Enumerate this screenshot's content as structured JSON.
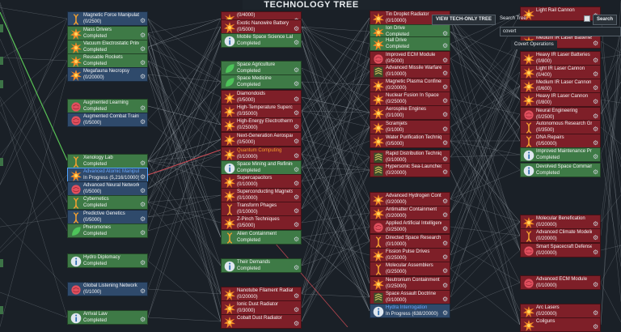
{
  "header": {
    "title": "TECHNOLOGY TREE"
  },
  "controls": {
    "view_only_btn": "VIEW TECH-ONLY TREE",
    "search_label": "Search Tree",
    "search_btn": "Search",
    "search_value": "covert",
    "result_label": "Covert Operations"
  },
  "colors": {
    "completed": "#3e7a46",
    "locked": "#7e1f28",
    "progress": "#2f4a6b",
    "line": "#9aa3ab",
    "highlight_green": "#5fd35a",
    "highlight_red": "#e0505a"
  },
  "col1": [
    {
      "name": "Magnetic Force Manipulation",
      "status": "(0/2500)",
      "c": "blue",
      "icon": "dna-icon"
    },
    {
      "name": "Mass Drivers",
      "status": "Completed",
      "c": "green",
      "icon": "explosion-icon"
    },
    {
      "name": "Vacuum Electrostatic Principles",
      "status": "Completed",
      "c": "green",
      "icon": "explosion-icon"
    },
    {
      "name": "Reusable Rockets",
      "status": "Completed",
      "c": "green",
      "icon": "explosion-icon"
    },
    {
      "name": "Megafauna Necropsy",
      "status": "(0/20000)",
      "c": "blue",
      "icon": "explosion-icon"
    },
    {
      "name": "Augmented Learning",
      "status": "Completed",
      "c": "green",
      "icon": "brain-icon"
    },
    {
      "name": "Augmented Combat Training",
      "status": "(0/5000)",
      "c": "blue",
      "icon": "brain-icon"
    },
    {
      "name": "Xenology Lab",
      "status": "Completed",
      "c": "green",
      "icon": "dna-icon"
    },
    {
      "name": "Advanced Atomic Manipulation",
      "status": "In Progress (5,216/10000)",
      "c": "blue",
      "icon": "explosion-icon",
      "sel": true
    },
    {
      "name": "Advanced Neural Networks",
      "status": "(0/5000)",
      "c": "blue",
      "icon": "brain-icon"
    },
    {
      "name": "Cybernetics",
      "status": "Completed",
      "c": "green",
      "icon": "dna-icon"
    },
    {
      "name": "Predictive Genetics",
      "status": "(0/5000)",
      "c": "blue",
      "icon": "dna-icon"
    },
    {
      "name": "Pheromones",
      "status": "Completed",
      "c": "green",
      "icon": "leaf-icon"
    },
    {
      "name": "Hydro Diplomacy",
      "status": "Completed",
      "c": "green",
      "icon": "info-icon"
    },
    {
      "name": "Global Listening Network",
      "status": "(0/1000)",
      "c": "blue",
      "icon": "brain-icon"
    },
    {
      "name": "Arrival Law",
      "status": "Completed",
      "c": "green",
      "icon": "info-icon"
    }
  ],
  "col2": [
    {
      "name": "(0/4000)",
      "status": "",
      "c": "red",
      "icon": "explosion-icon"
    },
    {
      "name": "Exotic Nanowire Battery",
      "status": "(0/5000)",
      "c": "red",
      "icon": "explosion-icon"
    },
    {
      "name": "Mobile Space Science Lab",
      "status": "Completed",
      "c": "green",
      "icon": "info-icon"
    },
    {
      "name": "Space Agriculture",
      "status": "Completed",
      "c": "green",
      "icon": "leaf-icon"
    },
    {
      "name": "Space Medicine",
      "status": "Completed",
      "c": "green",
      "icon": "leaf-icon"
    },
    {
      "name": "Diamondoids",
      "status": "(0/5000)",
      "c": "red",
      "icon": "explosion-icon"
    },
    {
      "name": "High-Temperature Superconductors",
      "status": "(0/35000)",
      "c": "red",
      "icon": "explosion-icon"
    },
    {
      "name": "High-Energy Electrothermal Propulsion",
      "status": "(0/25000)",
      "c": "red",
      "icon": "explosion-icon"
    },
    {
      "name": "Next-Generation Aerospace",
      "status": "(0/5000)",
      "c": "red",
      "icon": "explosion-icon"
    },
    {
      "name": "Quantum Computing",
      "status": "(0/10000)",
      "c": "red",
      "icon": "explosion-icon",
      "orange": true
    },
    {
      "name": "Space Mining and Refining",
      "status": "Completed",
      "c": "green",
      "icon": "info-icon"
    },
    {
      "name": "Supercapacitors",
      "status": "(0/10000)",
      "c": "red",
      "icon": "explosion-icon"
    },
    {
      "name": "Superconducting Magnets",
      "status": "(0/10000)",
      "c": "red",
      "icon": "explosion-icon"
    },
    {
      "name": "Transform Phages",
      "status": "(0/10000)",
      "c": "red",
      "icon": "dna-icon"
    },
    {
      "name": "Z-Pinch Techniques",
      "status": "(0/5000)",
      "c": "red",
      "icon": "explosion-icon"
    },
    {
      "name": "Alien Containment",
      "status": "Completed",
      "c": "green",
      "icon": "dna-icon"
    },
    {
      "name": "Their Demands",
      "status": "Completed",
      "c": "green",
      "icon": "info-icon"
    },
    {
      "name": "Nanotube Filament Radiator",
      "status": "(0/20000)",
      "c": "red",
      "icon": "explosion-icon"
    },
    {
      "name": "Ionic Dust Radiator",
      "status": "(0/3000)",
      "c": "red",
      "icon": "explosion-icon"
    },
    {
      "name": "Cobalt Dust Radiator",
      "status": "",
      "c": "red",
      "icon": "explosion-icon"
    }
  ],
  "col3": [
    {
      "name": "Tin Droplet Radiator",
      "status": "(0/10000)",
      "c": "red",
      "icon": "explosion-icon"
    },
    {
      "name": "Ion Drive",
      "status": "Completed",
      "c": "green",
      "icon": "explosion-icon"
    },
    {
      "name": "Hall Drive",
      "status": "Completed",
      "c": "green",
      "icon": "explosion-icon"
    },
    {
      "name": "Improved ECM Module",
      "status": "(0/5000)",
      "c": "red",
      "icon": "brain-icon"
    },
    {
      "name": "Advanced Missile Warfare Doctrine",
      "status": "(0/10000)",
      "c": "red",
      "icon": "rank-icon"
    },
    {
      "name": "Magnetic Plasma Confinement",
      "status": "(0/20000)",
      "c": "red",
      "icon": "explosion-icon"
    },
    {
      "name": "Nuclear Fusion In Space",
      "status": "(0/25000)",
      "c": "red",
      "icon": "explosion-icon"
    },
    {
      "name": "Aerospike Engines",
      "status": "(0/1000)",
      "c": "red",
      "icon": "explosion-icon"
    },
    {
      "name": "Scramjets",
      "status": "(0/1000)",
      "c": "red",
      "icon": "explosion-icon"
    },
    {
      "name": "Water Purification Techniques",
      "status": "(0/5000)",
      "c": "red",
      "icon": "explosion-icon"
    },
    {
      "name": "Rapid Distribution Techniques",
      "status": "(0/10000)",
      "c": "red",
      "icon": "rank-icon"
    },
    {
      "name": "Hypersonic Sea-Launched Cruise Missiles",
      "status": "(0/20000)",
      "c": "red",
      "icon": "rank-icon"
    },
    {
      "name": "Advanced Hydrogen Containment",
      "status": "(0/20000)",
      "c": "red",
      "icon": "explosion-icon"
    },
    {
      "name": "Antimatter Containment",
      "status": "(0/20000)",
      "c": "red",
      "icon": "explosion-icon"
    },
    {
      "name": "Applied Artificial Intelligence",
      "status": "(0/25000)",
      "c": "red",
      "icon": "brain-icon"
    },
    {
      "name": "Directed Space Research",
      "status": "(0/10000)",
      "c": "red",
      "icon": "dna-icon"
    },
    {
      "name": "Fission Pulse Drives",
      "status": "(0/25000)",
      "c": "red",
      "icon": "explosion-icon"
    },
    {
      "name": "Molecular Assemblers",
      "status": "(0/25000)",
      "c": "red",
      "icon": "dna-icon"
    },
    {
      "name": "Neutronium Containment",
      "status": "(0/25000)",
      "c": "red",
      "icon": "explosion-icon"
    },
    {
      "name": "Space Assault Doctrine",
      "status": "(0/10000)",
      "c": "red",
      "icon": "rank-icon"
    },
    {
      "name": "Hydra Interrogation",
      "status": "In Progress (638/20000)",
      "c": "blue",
      "icon": "info-icon",
      "blue": true
    }
  ],
  "col4": [
    {
      "name": "Light Rail Cannon",
      "status": "",
      "c": "red",
      "icon": "explosion-icon"
    },
    {
      "name": "Medium IR Laser Batteries",
      "status": "",
      "c": "red",
      "icon": "explosion-icon"
    },
    {
      "name": "Heavy IR Laser Batteries",
      "status": "(0/800)",
      "c": "red",
      "icon": "explosion-icon"
    },
    {
      "name": "Light IR Laser Cannon",
      "status": "(0/400)",
      "c": "red",
      "icon": "explosion-icon"
    },
    {
      "name": "Medium IR Laser Cannon",
      "status": "(0/600)",
      "c": "red",
      "icon": "explosion-icon"
    },
    {
      "name": "Heavy IR Laser Cannon",
      "status": "(0/800)",
      "c": "red",
      "icon": "explosion-icon"
    },
    {
      "name": "Neural Engineering",
      "status": "(0/2500)",
      "c": "red",
      "icon": "brain-icon"
    },
    {
      "name": "Autonomous Research Groups",
      "status": "(0/3500)",
      "c": "red",
      "icon": "dna-icon"
    },
    {
      "name": "DNA Repairs",
      "status": "(0/50000)",
      "c": "red",
      "icon": "dna-icon"
    },
    {
      "name": "Improved Maintenance Procedures",
      "status": "Completed",
      "c": "green",
      "icon": "info-icon"
    },
    {
      "name": "Devolved Space Command",
      "status": "Completed",
      "c": "green",
      "icon": "info-icon"
    },
    {
      "name": "Molecular Benefication",
      "status": "(0/20000)",
      "c": "red",
      "icon": "explosion-icon"
    },
    {
      "name": "Advanced Climate Modeling",
      "status": "(0/20000)",
      "c": "red",
      "icon": "dna-icon"
    },
    {
      "name": "Smart Spacecraft Defenses",
      "status": "(0/20000)",
      "c": "red",
      "icon": "brain-icon"
    },
    {
      "name": "Advanced ECM Module",
      "status": "(0/10000)",
      "c": "red",
      "icon": "brain-icon"
    },
    {
      "name": "Arc Lasers",
      "status": "(0/20000)",
      "c": "red",
      "icon": "explosion-icon"
    },
    {
      "name": "Coilguns",
      "status": "",
      "c": "red",
      "icon": "explosion-icon"
    }
  ]
}
